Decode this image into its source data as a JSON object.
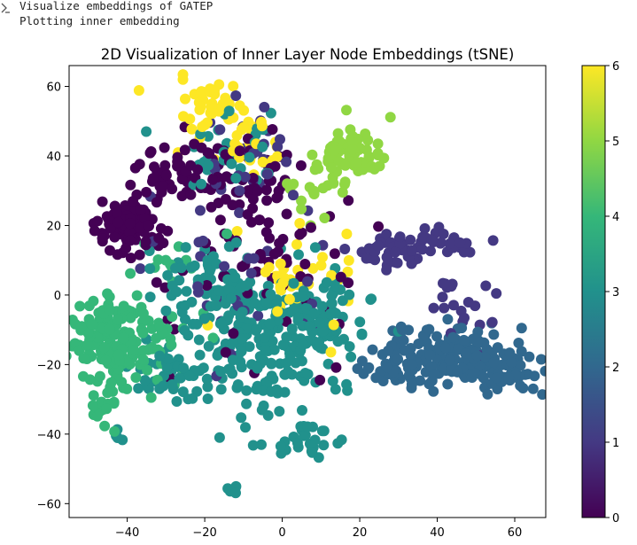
{
  "output": {
    "lines": [
      "Visualize embeddings of GATEP",
      "Plotting inner embedding"
    ]
  },
  "chart_data": {
    "type": "scatter",
    "title": "2D Visualization of Inner Layer Node Embeddings (tSNE)",
    "xlabel": "",
    "ylabel": "",
    "xlim": [
      -55,
      68
    ],
    "ylim": [
      -64,
      66
    ],
    "xticks": [
      -40,
      -20,
      0,
      20,
      40,
      60
    ],
    "yticks": [
      -60,
      -40,
      -20,
      0,
      20,
      40,
      60
    ],
    "grid": false,
    "colormap": "viridis",
    "colorbar": {
      "ticks": [
        0,
        1,
        2,
        3,
        4,
        5,
        6
      ],
      "range": [
        0,
        6
      ]
    },
    "marker_size": 6,
    "clusters": [
      {
        "cx": -40,
        "cy": 19,
        "sx": 4,
        "sy": 4,
        "n": 110,
        "c": 0
      },
      {
        "cx": -25,
        "cy": 35,
        "sx": 6,
        "sy": 5,
        "n": 55,
        "c": 0
      },
      {
        "cx": -8,
        "cy": 32,
        "sx": 5,
        "sy": 6,
        "n": 40,
        "c": 0
      },
      {
        "cx": -17,
        "cy": 53,
        "sx": 5,
        "sy": 4,
        "n": 45,
        "c": 6
      },
      {
        "cx": -10,
        "cy": 42,
        "sx": 5,
        "sy": 4,
        "n": 25,
        "c": 6
      },
      {
        "cx": 0,
        "cy": 5,
        "sx": 2,
        "sy": 2,
        "n": 18,
        "c": 6
      },
      {
        "cx": -16,
        "cy": 40,
        "sx": 6,
        "sy": 6,
        "n": 35,
        "c": 3
      },
      {
        "cx": -10,
        "cy": 45,
        "sx": 6,
        "sy": 6,
        "n": 22,
        "c": 1
      },
      {
        "cx": 18,
        "cy": 40,
        "sx": 4,
        "sy": 4,
        "n": 65,
        "c": 5
      },
      {
        "cx": 10,
        "cy": 30,
        "sx": 4,
        "sy": 4,
        "n": 20,
        "c": 5
      },
      {
        "cx": -44,
        "cy": -13,
        "sx": 6,
        "sy": 7,
        "n": 150,
        "c": 4
      },
      {
        "cx": -47,
        "cy": -32,
        "sx": 2,
        "sy": 3,
        "n": 20,
        "c": 4
      },
      {
        "cx": -32,
        "cy": -12,
        "sx": 5,
        "sy": 5,
        "n": 30,
        "c": 4
      },
      {
        "cx": -30,
        "cy": 13,
        "sx": 5,
        "sy": 5,
        "n": 12,
        "c": 4
      },
      {
        "cx": 28,
        "cy": 13,
        "sx": 5,
        "sy": 2,
        "n": 45,
        "c": 1
      },
      {
        "cx": 42,
        "cy": 15,
        "sx": 4,
        "sy": 2,
        "n": 25,
        "c": 1
      },
      {
        "cx": 46,
        "cy": -5,
        "sx": 4,
        "sy": 5,
        "n": 20,
        "c": 1
      },
      {
        "cx": 42,
        "cy": -18,
        "sx": 8,
        "sy": 5,
        "n": 160,
        "c": 2
      },
      {
        "cx": 57,
        "cy": -20,
        "sx": 5,
        "sy": 3,
        "n": 70,
        "c": 2
      },
      {
        "cx": 30,
        "cy": -21,
        "sx": 3,
        "sy": 3,
        "n": 12,
        "c": 2
      },
      {
        "cx": -28,
        "cy": -22,
        "sx": 5,
        "sy": 4,
        "n": 45,
        "c": 3
      },
      {
        "cx": -5,
        "cy": -12,
        "sx": 9,
        "sy": 12,
        "n": 210,
        "c": 3
      },
      {
        "cx": -20,
        "cy": 3,
        "sx": 6,
        "sy": 6,
        "n": 60,
        "c": 3
      },
      {
        "cx": 10,
        "cy": -5,
        "sx": 6,
        "sy": 6,
        "n": 60,
        "c": 3
      },
      {
        "cx": 5,
        "cy": -42,
        "sx": 5,
        "sy": 3,
        "n": 25,
        "c": 3
      },
      {
        "cx": -13,
        "cy": -56,
        "sx": 1,
        "sy": 1,
        "n": 6,
        "c": 3
      },
      {
        "cx": -42,
        "cy": -41,
        "sx": 0.8,
        "sy": 1,
        "n": 4,
        "c": 3
      },
      {
        "cx": -5,
        "cy": 10,
        "sx": 12,
        "sy": 18,
        "n": 70,
        "c": 0
      },
      {
        "cx": -10,
        "cy": 5,
        "sx": 14,
        "sy": 18,
        "n": 40,
        "c": 1
      },
      {
        "cx": 10,
        "cy": 5,
        "sx": 10,
        "sy": 12,
        "n": 20,
        "c": 6
      }
    ]
  }
}
